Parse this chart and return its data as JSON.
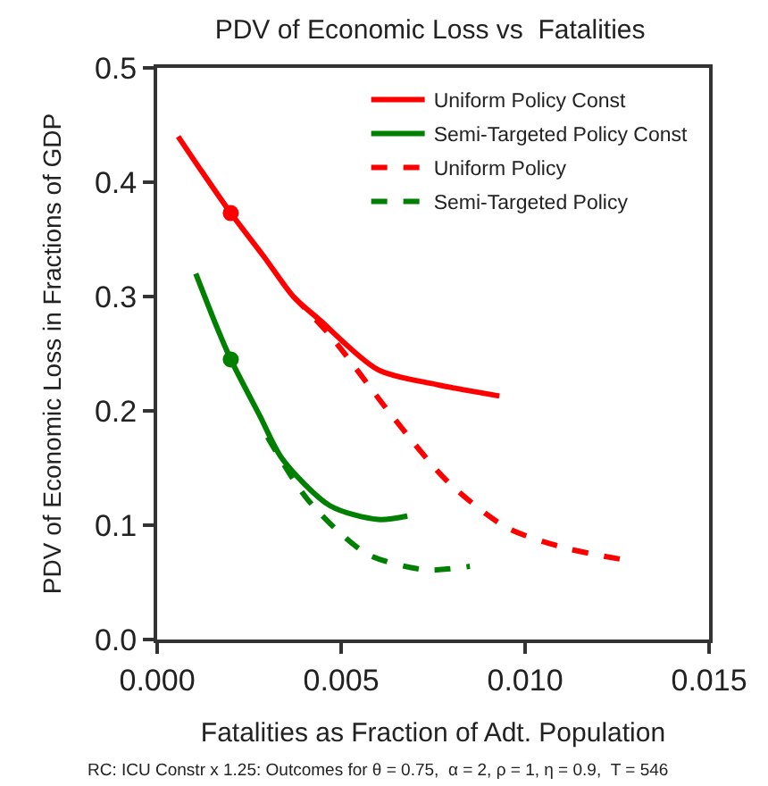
{
  "chart_data": {
    "type": "line",
    "title": "PDV of Economic Loss vs  Fatalities",
    "xlabel": "Fatalities as Fraction of Adt. Population",
    "ylabel": "PDV of Economic Loss in Fractions of GDP",
    "annotations": [
      "RC: ICU Constr x 1.25: Outcomes for θ = 0.75,  α = 2, ρ = 1, η = 0.9,  T = 546"
    ],
    "xlim": [
      0,
      0.015
    ],
    "xticks": [
      "0.000",
      0.005,
      "0.010",
      0.015
    ],
    "ylim": [
      0,
      0.5
    ],
    "yticks": [
      "0.0",
      0.1,
      0.2,
      0.3,
      0.4,
      "0.5"
    ],
    "grid": false,
    "legend": "top right",
    "marker": "none",
    "series": [
      {
        "name": "Uniform Policy Const",
        "color": "#ff0000",
        "line_style": "solid",
        "x": [
          0.00057,
          0.0012,
          0.002,
          0.0029,
          0.0037,
          0.0044,
          0.006,
          0.0076,
          0.0093
        ],
        "values": [
          0.44,
          0.41,
          0.373,
          0.335,
          0.3,
          0.28,
          0.236,
          0.223,
          0.213
        ]
      },
      {
        "name": "Semi-Targeted Policy Const",
        "color": "#008000",
        "line_style": "solid",
        "x": [
          0.00105,
          0.0016,
          0.002,
          0.0028,
          0.0034,
          0.0047,
          0.006,
          0.0068
        ],
        "values": [
          0.32,
          0.275,
          0.245,
          0.195,
          0.158,
          0.117,
          0.105,
          0.108
        ]
      },
      {
        "name": "Uniform Policy",
        "color": "#ff0000",
        "line_style": "dashed",
        "x": [
          0.0037,
          0.0047,
          0.0064,
          0.0079,
          0.0095,
          0.0111,
          0.01265
        ],
        "values": [
          0.3,
          0.266,
          0.195,
          0.138,
          0.098,
          0.08,
          0.07
        ]
      },
      {
        "name": "Semi-Targeted Policy",
        "color": "#008000",
        "line_style": "dashed",
        "x": [
          0.003,
          0.0041,
          0.0057,
          0.0073,
          0.0085
        ],
        "values": [
          0.177,
          0.122,
          0.075,
          0.061,
          0.064
        ]
      },
      {
        "type": "scatter",
        "marker": "circle",
        "color": "#ff0000",
        "x": [
          0.002
        ],
        "values": [
          0.373
        ]
      },
      {
        "type": "scatter",
        "marker": "circle",
        "color": "#008000",
        "x": [
          0.002
        ],
        "values": [
          0.245
        ]
      }
    ]
  }
}
